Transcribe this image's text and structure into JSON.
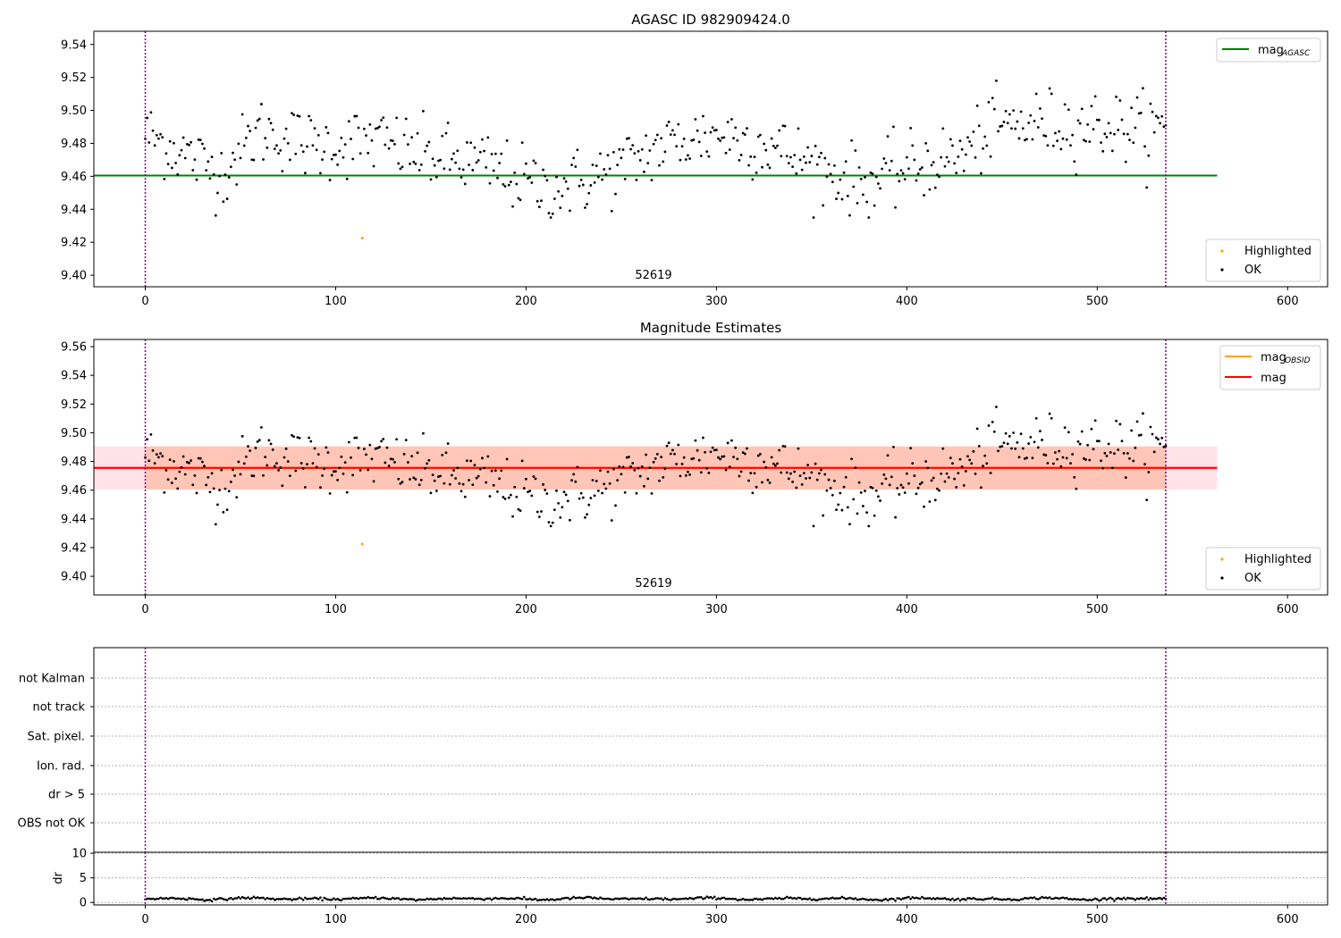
{
  "figure": {
    "title1": "AGASC ID 982909424.0",
    "title2": "Magnitude Estimates",
    "obsid_label": "52619"
  },
  "colors": {
    "agasc_line": "#008000",
    "obsid_line": "#FFA500",
    "mag_line": "#FF0000",
    "highlight": "#FFA500",
    "ok": "#000000",
    "band_outer": "#FFC0CB",
    "band_inner": "#FFA07A",
    "vline": "#800080"
  },
  "legends": {
    "top_line": "mag",
    "top_line_sub": "AGASC",
    "mid_line1": "mag",
    "mid_line1_sub": "OBSID",
    "mid_line2": "mag",
    "highlighted": "Highlighted",
    "ok": "OK"
  },
  "chart_data": [
    {
      "type": "scatter",
      "title": "AGASC ID 982909424.0",
      "xlim": [
        -27,
        621
      ],
      "ylim": [
        9.393,
        9.548
      ],
      "yticks": [
        9.4,
        9.42,
        9.44,
        9.46,
        9.48,
        9.5,
        9.52,
        9.54
      ],
      "xticks": [
        0,
        100,
        200,
        300,
        400,
        500,
        600
      ],
      "vlines": [
        0,
        536
      ],
      "hline": {
        "name": "mag_AGASC",
        "y": 9.4605,
        "x": [
          -27,
          563
        ]
      },
      "highlighted": [
        {
          "x": 114,
          "y": 9.4225
        }
      ],
      "ok_series": "generated from trend + noise, n = 537, mean ≈ 9.476",
      "annotation": "52619",
      "legend": [
        "mag_AGASC",
        "Highlighted",
        "OK"
      ]
    },
    {
      "type": "scatter",
      "title": "Magnitude Estimates",
      "xlim": [
        -27,
        621
      ],
      "ylim": [
        9.387,
        9.565
      ],
      "yticks": [
        9.4,
        9.42,
        9.44,
        9.46,
        9.48,
        9.5,
        9.52,
        9.54,
        9.56
      ],
      "xticks": [
        0,
        100,
        200,
        300,
        400,
        500,
        600
      ],
      "vlines": [
        0,
        536
      ],
      "hline": {
        "name": "mag",
        "y": 9.4755,
        "x": [
          -27,
          563
        ]
      },
      "band_outer": [
        9.4605,
        9.4905
      ],
      "band_inner_range": [
        0,
        536
      ],
      "highlighted": [
        {
          "x": 114,
          "y": 9.4225
        }
      ],
      "annotation": "52619",
      "legend": [
        "mag_OBSID",
        "mag",
        "Highlighted",
        "OK"
      ]
    },
    {
      "type": "scatter",
      "title": "",
      "xlim": [
        -27,
        621
      ],
      "flags": [
        "OBS not OK",
        "dr > 5",
        "Ion. rad.",
        "Sat. pixel.",
        "not track",
        "not Kalman"
      ],
      "flag_counts": [
        0,
        0,
        0,
        0,
        0,
        0
      ],
      "vlines": [
        0,
        536
      ]
    },
    {
      "type": "scatter",
      "ylabel": "dr",
      "xlim": [
        -27,
        621
      ],
      "ylim": [
        -0.5,
        10.2
      ],
      "yticks": [
        0,
        5,
        10
      ],
      "xticks": [
        0,
        100,
        200,
        300,
        400,
        500,
        600
      ],
      "vlines": [
        0,
        536
      ],
      "dr_series": "small values 0.1–1.3 for x = 0…536"
    }
  ]
}
